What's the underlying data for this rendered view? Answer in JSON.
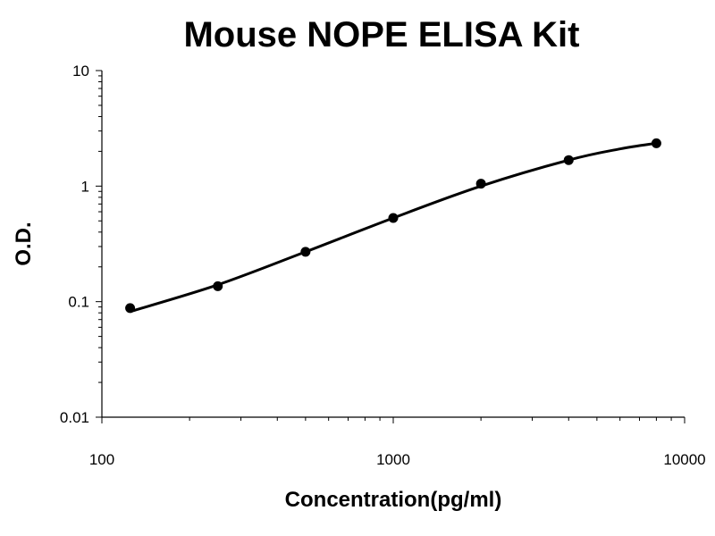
{
  "chart_data": {
    "type": "scatter",
    "title": "Mouse NOPE ELISA Kit",
    "xlabel": "Concentration(pg/ml)",
    "ylabel": "O.D.",
    "x_scale": "log",
    "y_scale": "log",
    "xlim": [
      100,
      10000
    ],
    "ylim": [
      0.01,
      10
    ],
    "x_ticks": [
      "100",
      "1000",
      "10000"
    ],
    "y_ticks": [
      "0.01",
      "0.1",
      "1",
      "10"
    ],
    "grid": false,
    "legend": "none",
    "series": [
      {
        "x": [
          125,
          250,
          500,
          1000,
          2000,
          4000,
          8000
        ],
        "y": [
          0.088,
          0.136,
          0.27,
          0.53,
          1.05,
          1.68,
          2.35
        ]
      }
    ],
    "trendline": {
      "x": [
        125,
        250,
        500,
        1000,
        2000,
        4000,
        6000,
        8000
      ],
      "y": [
        0.082,
        0.14,
        0.27,
        0.53,
        1.0,
        1.68,
        2.1,
        2.35
      ]
    }
  }
}
